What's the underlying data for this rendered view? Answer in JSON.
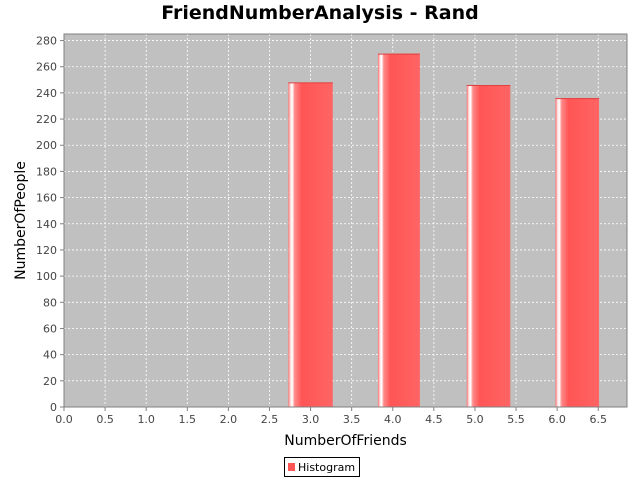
{
  "chart_data": {
    "type": "bar",
    "title": "FriendNumberAnalysis - Rand",
    "xlabel": "NumberOfFriends",
    "ylabel": "NumberOfPeople",
    "xlim": [
      0.0,
      6.85
    ],
    "ylim": [
      0,
      285
    ],
    "xticks": [
      "0.0",
      "0.5",
      "1.0",
      "1.5",
      "2.0",
      "2.5",
      "3.0",
      "3.5",
      "4.0",
      "4.5",
      "5.0",
      "5.5",
      "6.0",
      "6.5"
    ],
    "yticks": [
      "0",
      "20",
      "40",
      "60",
      "80",
      "100",
      "120",
      "140",
      "160",
      "180",
      "200",
      "220",
      "240",
      "260",
      "280"
    ],
    "grid": true,
    "legend_position": "bottom-center",
    "series": [
      {
        "name": "Histogram",
        "color": "#ff5555",
        "bars": [
          {
            "x_start": 2.73,
            "x_end": 3.27,
            "value": 248
          },
          {
            "x_start": 3.82,
            "x_end": 4.33,
            "value": 270
          },
          {
            "x_start": 4.9,
            "x_end": 5.43,
            "value": 246
          },
          {
            "x_start": 5.98,
            "x_end": 6.51,
            "value": 236
          }
        ]
      }
    ]
  }
}
